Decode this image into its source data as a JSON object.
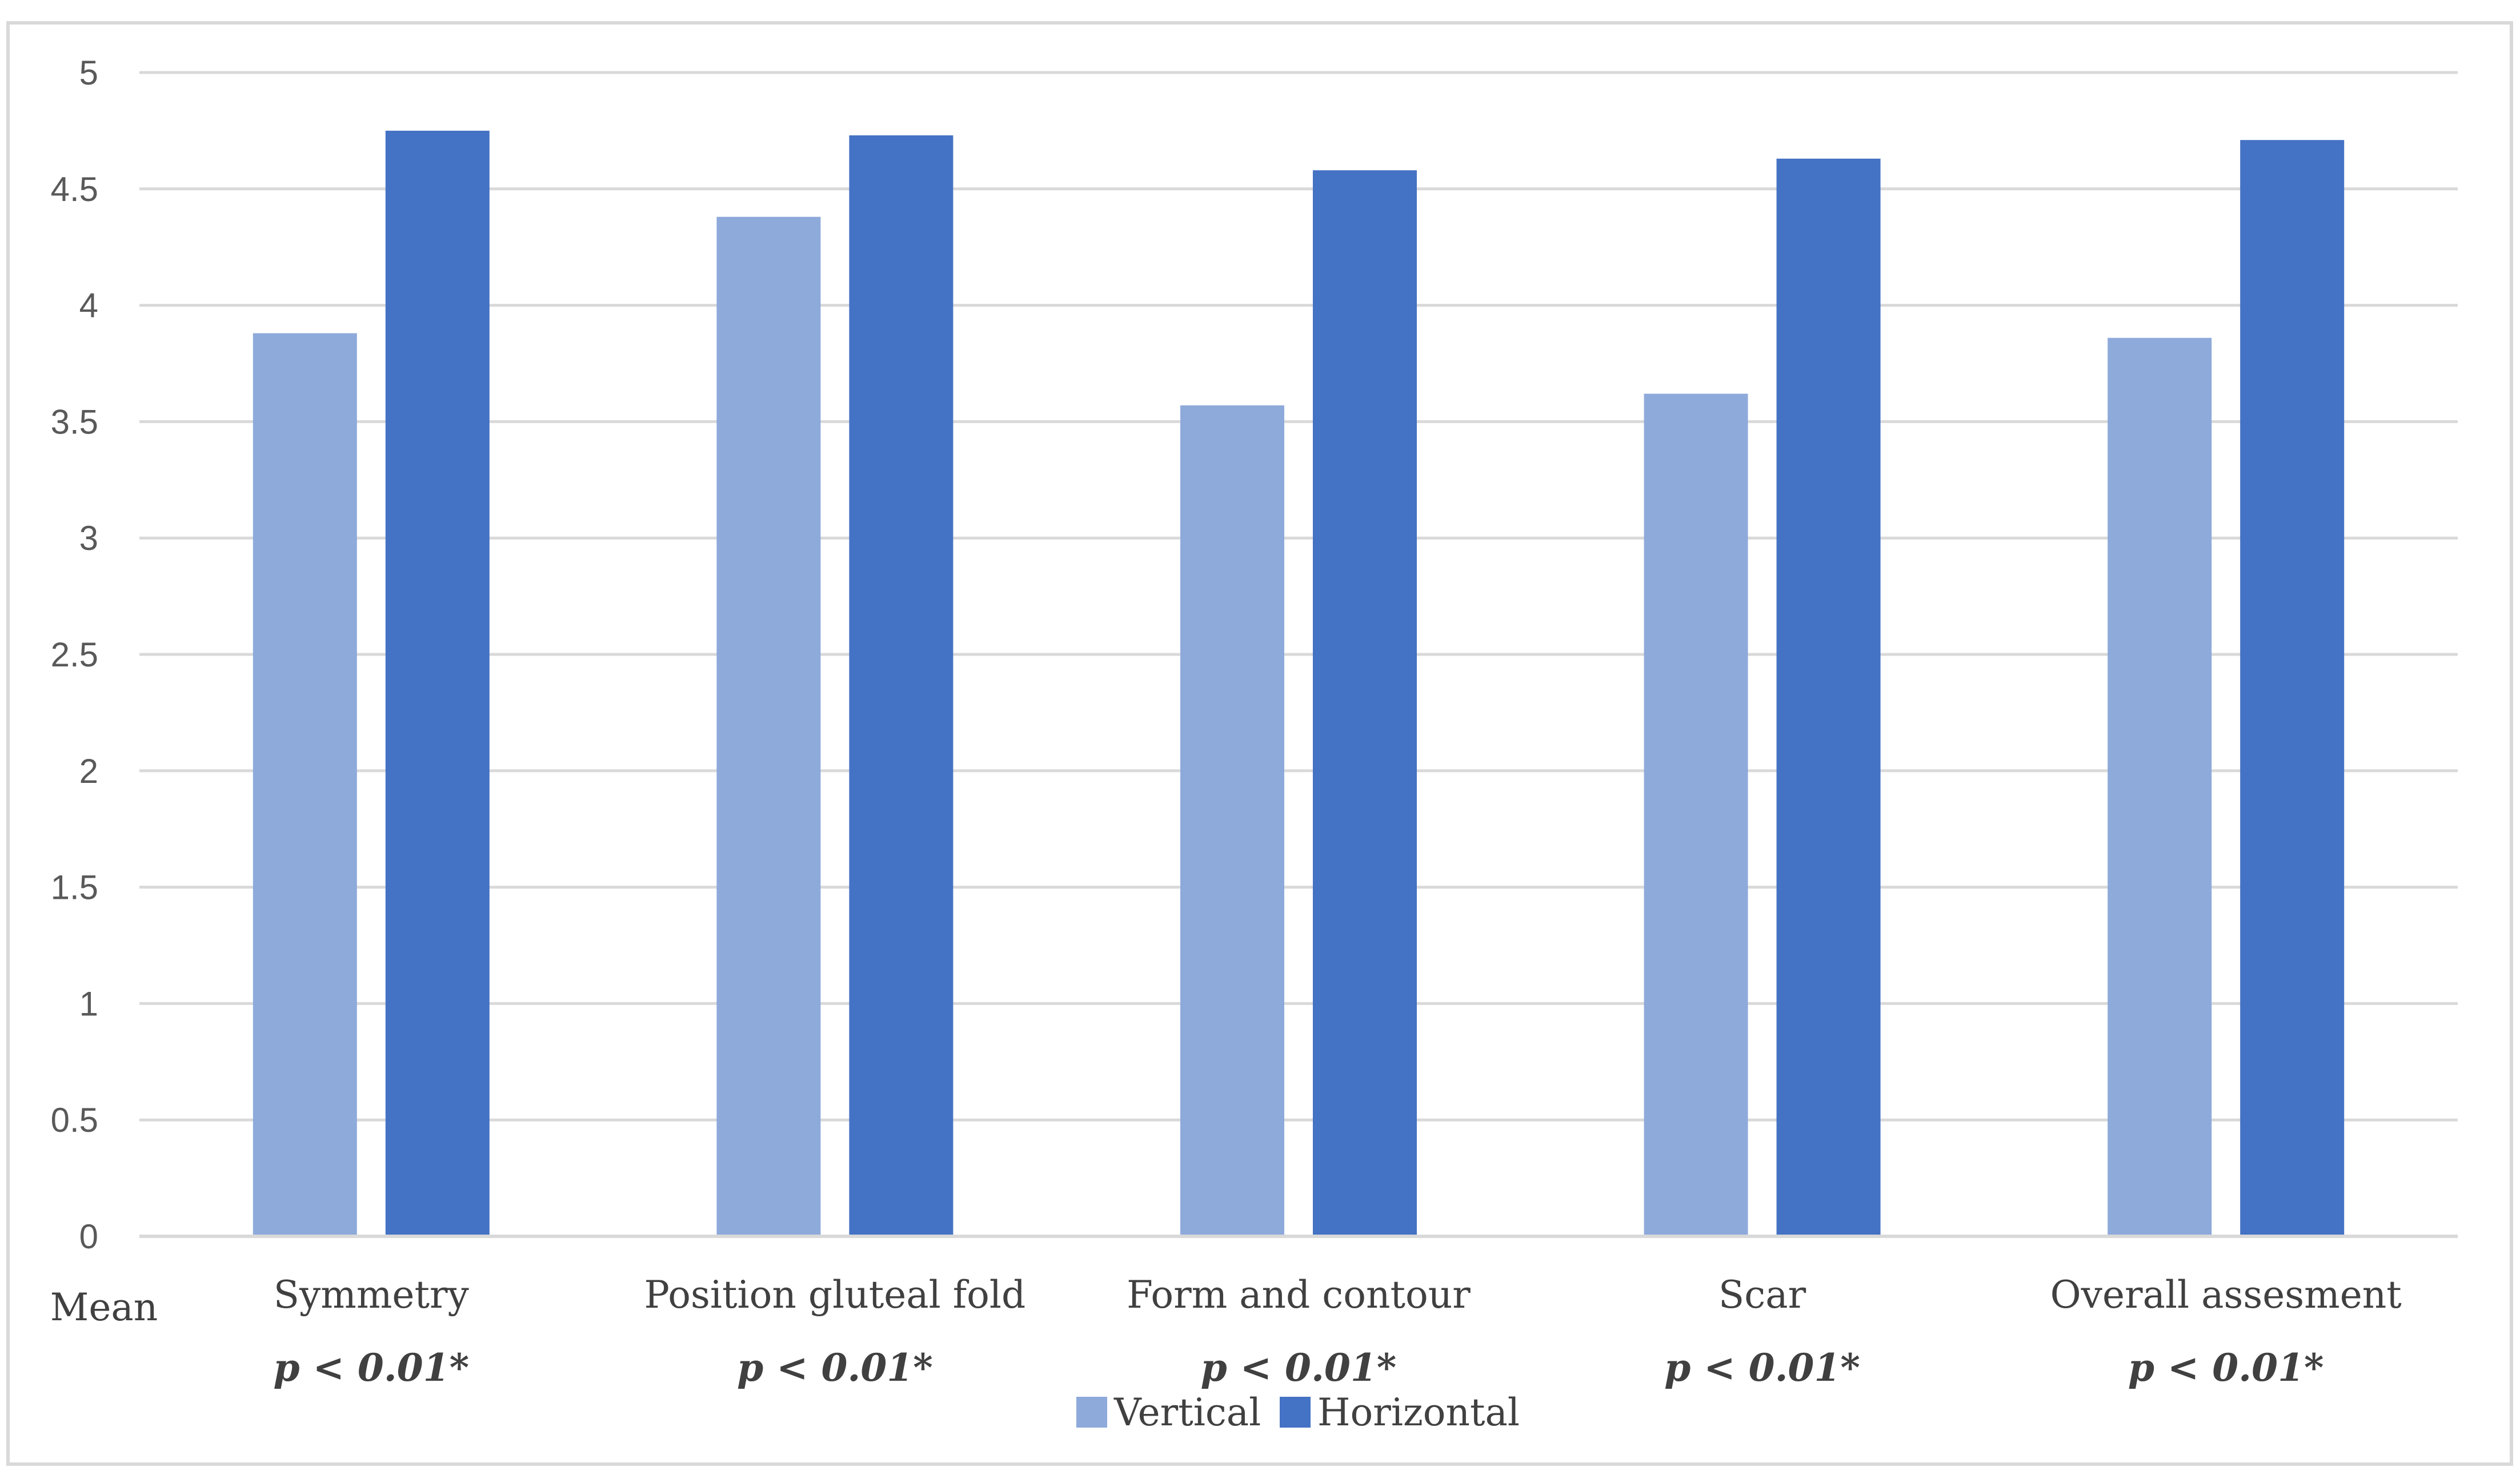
{
  "chart_data": {
    "type": "bar",
    "title": "",
    "xlabel": "",
    "ylabel": "",
    "row_header": "Mean",
    "categories": [
      "Symmetry",
      "Position gluteal fold",
      "Form and contour",
      "Scar",
      "Overall assesment"
    ],
    "p_values": [
      "p < 0.01*",
      "p < 0.01*",
      "p < 0.01*",
      "p < 0.01*",
      "p < 0.01*"
    ],
    "series": [
      {
        "name": "Vertical",
        "color": "#8eaadb",
        "values": [
          3.88,
          4.38,
          3.57,
          3.62,
          3.86
        ]
      },
      {
        "name": "Horizontal",
        "color": "#4472c4",
        "values": [
          4.75,
          4.73,
          4.58,
          4.63,
          4.71
        ]
      }
    ],
    "ylim": [
      0,
      5
    ],
    "yticks": [
      "0",
      "0.5",
      "1",
      "1.5",
      "2",
      "2.5",
      "3",
      "3.5",
      "4",
      "4.5",
      "5"
    ],
    "grid": true,
    "legend_position": "bottom"
  }
}
